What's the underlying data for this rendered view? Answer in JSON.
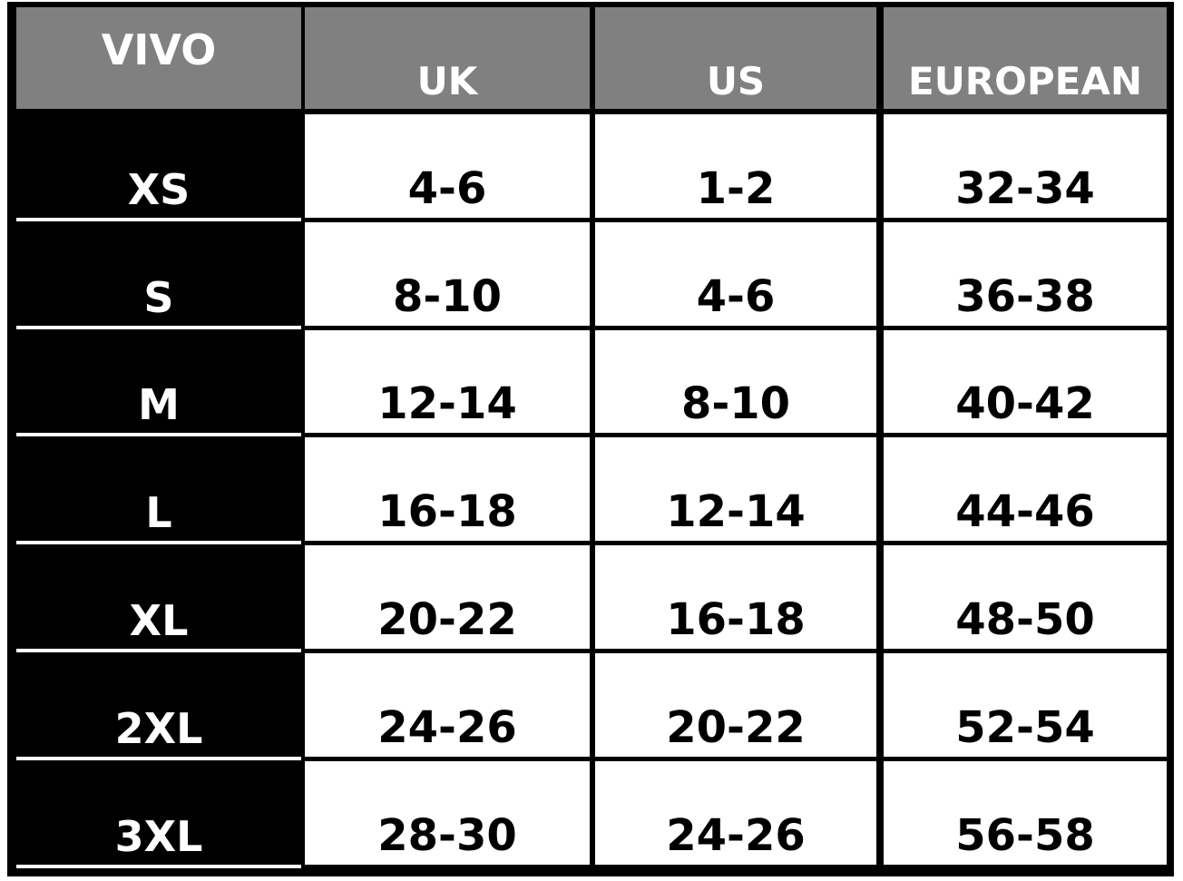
{
  "table": {
    "header": [
      "VIVO",
      "UK",
      "US",
      "EUROPEAN"
    ],
    "rows": [
      [
        "XS",
        "4-6",
        "1-2",
        "32-34"
      ],
      [
        "S",
        "8-10",
        "4-6",
        "36-38"
      ],
      [
        "M",
        "12-14",
        "8-10",
        "40-42"
      ],
      [
        "L",
        "16-18",
        "12-14",
        "44-46"
      ],
      [
        "XL",
        "20-22",
        "16-18",
        "48-50"
      ],
      [
        "2XL",
        "24-26",
        "20-22",
        "52-54"
      ],
      [
        "3XL",
        "28-30",
        "24-26",
        "56-58"
      ]
    ]
  }
}
